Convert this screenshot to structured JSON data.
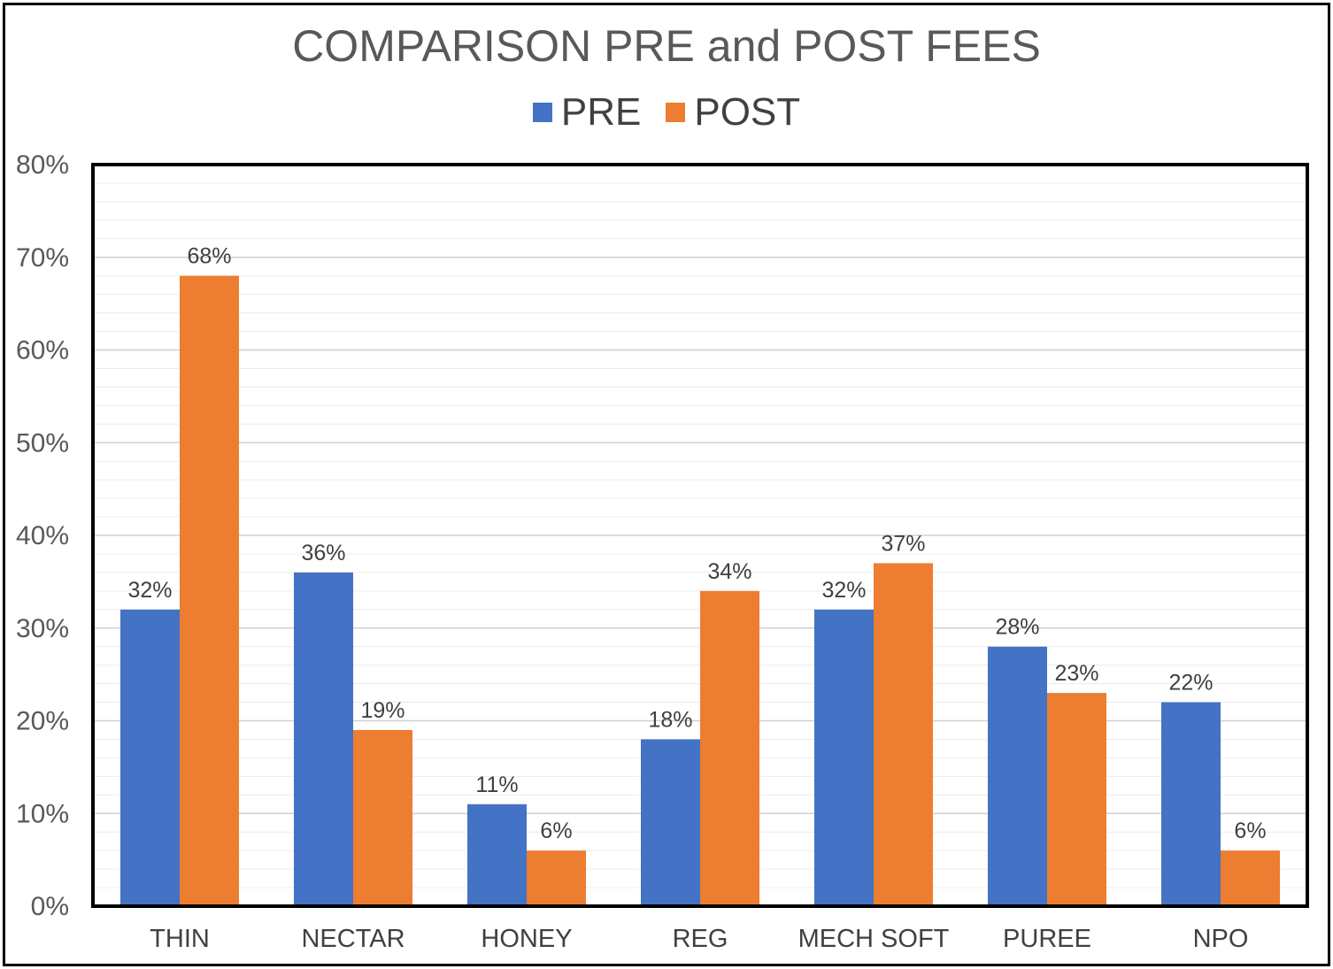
{
  "chart_data": {
    "type": "bar",
    "title": "COMPARISON PRE and POST FEES",
    "categories": [
      "THIN",
      "NECTAR",
      "HONEY",
      "REG",
      "MECH SOFT",
      "PUREE",
      "NPO"
    ],
    "series": [
      {
        "name": "PRE",
        "color": "#4472C4",
        "values": [
          32,
          36,
          11,
          18,
          32,
          28,
          22
        ]
      },
      {
        "name": "POST",
        "color": "#ED7D31",
        "values": [
          68,
          19,
          6,
          34,
          37,
          23,
          6
        ]
      }
    ],
    "data_labels": {
      "PRE": [
        "32%",
        "36%",
        "11%",
        "18%",
        "32%",
        "28%",
        "22%"
      ],
      "POST": [
        "68%",
        "19%",
        "6%",
        "34%",
        "37%",
        "23%",
        "6%"
      ]
    },
    "y_ticks": [
      "0%",
      "10%",
      "20%",
      "30%",
      "40%",
      "50%",
      "60%",
      "70%",
      "80%"
    ],
    "ylim": [
      0,
      80
    ],
    "legend_position": "top",
    "grid": true
  }
}
